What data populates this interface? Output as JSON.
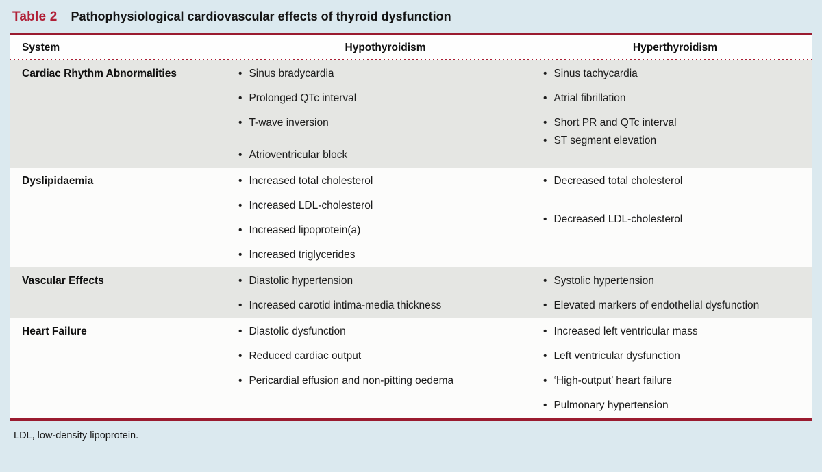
{
  "header": {
    "label": "Table 2",
    "title": "Pathophysiological cardiovascular effects of thyroid dysfunction"
  },
  "table": {
    "columns": [
      "System",
      "Hypothyroidism",
      "Hyperthyroidism"
    ],
    "rows": [
      {
        "system": "Cardiac Rhythm Abnormalities",
        "hypothyroidism": [
          "Sinus bradycardia",
          "Prolonged QTc interval",
          "T-wave inversion",
          "Atrioventricular block"
        ],
        "hyperthyroidism": [
          "Sinus tachycardia",
          "Atrial fibrillation",
          "Short PR and QTc interval",
          "ST segment elevation"
        ]
      },
      {
        "system": "Dyslipidaemia",
        "hypothyroidism": [
          "Increased total cholesterol",
          "Increased LDL-cholesterol",
          "Increased lipoprotein(a)",
          "Increased triglycerides"
        ],
        "hyperthyroidism": [
          "Decreased total cholesterol",
          "Decreased LDL-cholesterol"
        ]
      },
      {
        "system": "Vascular Effects",
        "hypothyroidism": [
          "Diastolic hypertension",
          "Increased carotid intima-media thickness"
        ],
        "hyperthyroidism": [
          "Systolic hypertension",
          "Elevated markers of endothelial dysfunction"
        ]
      },
      {
        "system": "Heart Failure",
        "hypothyroidism": [
          "Diastolic dysfunction",
          "Reduced cardiac output",
          "Pericardial effusion and non-pitting oedema"
        ],
        "hyperthyroidism": [
          "Increased left ventricular mass",
          "Left ventricular dysfunction",
          "‘High-output’ heart failure",
          "Pulmonary hypertension"
        ]
      }
    ]
  },
  "footnote": "LDL, low-density lipoprotein.",
  "colors": {
    "page_background": "#dbe9ef",
    "rule_red": "#9a1b2f",
    "dotted_red": "#a91d33",
    "label_red": "#b01f36",
    "row_gray": "#e5e6e3",
    "row_white": "#fcfcfb",
    "text": "#1b1b1b"
  }
}
